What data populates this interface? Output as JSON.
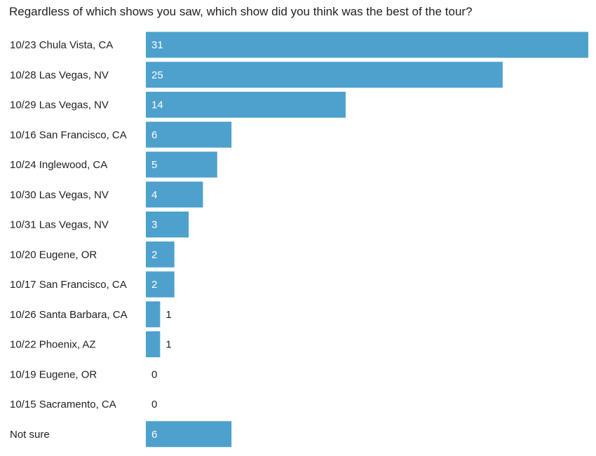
{
  "question": "Regardless of which shows you saw, which show did you think was the best of the tour?",
  "colors": {
    "bar": "#4ea1cc",
    "label_text": "#222222",
    "inside_value_text": "#ffffff",
    "outside_value_text": "#222222"
  },
  "chart_data": {
    "type": "bar",
    "orientation": "horizontal",
    "title": "Regardless of which shows you saw, which show did you think was the best of the tour?",
    "categories": [
      "10/23 Chula Vista, CA",
      "10/28 Las Vegas, NV",
      "10/29 Las Vegas, NV",
      "10/16 San Francisco, CA",
      "10/24 Inglewood, CA",
      "10/30 Las Vegas, NV",
      "10/31 Las Vegas, NV",
      "10/20 Eugene, OR",
      "10/17 San Francisco, CA",
      "10/26 Santa Barbara, CA",
      "10/22 Phoenix, AZ",
      "10/19 Eugene, OR",
      "10/15 Sacramento, CA",
      "Not sure"
    ],
    "values": [
      31,
      25,
      14,
      6,
      5,
      4,
      3,
      2,
      2,
      1,
      1,
      0,
      0,
      6
    ],
    "xlim": [
      0,
      31
    ],
    "grid": false,
    "legend": "none",
    "data_labels": true
  }
}
